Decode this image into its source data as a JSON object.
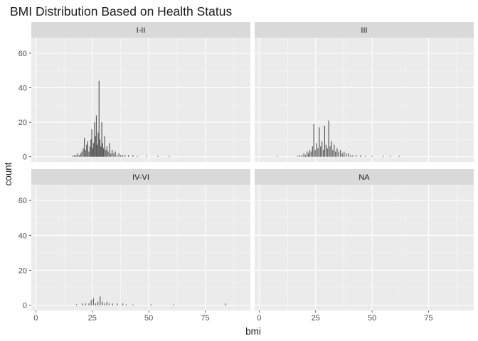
{
  "chart_data": {
    "type": "bar",
    "title": "BMI Distribution Based on Health Status",
    "xlabel": "bmi",
    "ylabel": "count",
    "xlim": [
      -2,
      95
    ],
    "ylim": [
      -3,
      69
    ],
    "x_ticks": [
      0,
      25,
      50,
      75
    ],
    "y_ticks": [
      0,
      20,
      40,
      60
    ],
    "grid": true,
    "facets": [
      {
        "label": "I-II",
        "bars": [
          {
            "x": 16.2,
            "y": 0.5
          },
          {
            "x": 17.0,
            "y": 1
          },
          {
            "x": 17.8,
            "y": 1
          },
          {
            "x": 18.5,
            "y": 2
          },
          {
            "x": 19.2,
            "y": 1
          },
          {
            "x": 19.9,
            "y": 2
          },
          {
            "x": 20.4,
            "y": 3
          },
          {
            "x": 21.0,
            "y": 5
          },
          {
            "x": 21.5,
            "y": 11
          },
          {
            "x": 22.0,
            "y": 4
          },
          {
            "x": 22.5,
            "y": 7
          },
          {
            "x": 23.0,
            "y": 9
          },
          {
            "x": 23.5,
            "y": 3
          },
          {
            "x": 24.0,
            "y": 6
          },
          {
            "x": 24.4,
            "y": 10
          },
          {
            "x": 24.8,
            "y": 16
          },
          {
            "x": 25.2,
            "y": 5
          },
          {
            "x": 25.6,
            "y": 8
          },
          {
            "x": 26.0,
            "y": 20
          },
          {
            "x": 26.4,
            "y": 12
          },
          {
            "x": 26.8,
            "y": 24
          },
          {
            "x": 27.2,
            "y": 7
          },
          {
            "x": 27.6,
            "y": 14
          },
          {
            "x": 28.0,
            "y": 44
          },
          {
            "x": 28.4,
            "y": 10
          },
          {
            "x": 28.8,
            "y": 6
          },
          {
            "x": 29.2,
            "y": 20
          },
          {
            "x": 29.6,
            "y": 8
          },
          {
            "x": 30.0,
            "y": 5
          },
          {
            "x": 30.5,
            "y": 12
          },
          {
            "x": 31.0,
            "y": 4
          },
          {
            "x": 31.5,
            "y": 6
          },
          {
            "x": 32.0,
            "y": 3
          },
          {
            "x": 32.6,
            "y": 8
          },
          {
            "x": 33.2,
            "y": 2
          },
          {
            "x": 33.8,
            "y": 4
          },
          {
            "x": 34.5,
            "y": 2
          },
          {
            "x": 35.2,
            "y": 3
          },
          {
            "x": 36.0,
            "y": 1
          },
          {
            "x": 36.8,
            "y": 2
          },
          {
            "x": 37.6,
            "y": 1
          },
          {
            "x": 38.5,
            "y": 1
          },
          {
            "x": 39.5,
            "y": 1
          },
          {
            "x": 41.0,
            "y": 1
          },
          {
            "x": 43.0,
            "y": 1
          },
          {
            "x": 45.0,
            "y": 0.5
          },
          {
            "x": 49.0,
            "y": 0.5
          },
          {
            "x": 54.0,
            "y": 0.5
          },
          {
            "x": 59.0,
            "y": 0.5
          }
        ]
      },
      {
        "label": "III",
        "bars": [
          {
            "x": 8.0,
            "y": 0.5
          },
          {
            "x": 17.0,
            "y": 0.5
          },
          {
            "x": 18.0,
            "y": 1
          },
          {
            "x": 19.0,
            "y": 1
          },
          {
            "x": 19.8,
            "y": 2
          },
          {
            "x": 20.5,
            "y": 1
          },
          {
            "x": 21.2,
            "y": 3
          },
          {
            "x": 21.8,
            "y": 2
          },
          {
            "x": 22.4,
            "y": 4
          },
          {
            "x": 23.0,
            "y": 3
          },
          {
            "x": 23.6,
            "y": 6
          },
          {
            "x": 24.2,
            "y": 19
          },
          {
            "x": 24.8,
            "y": 4
          },
          {
            "x": 25.4,
            "y": 8
          },
          {
            "x": 26.0,
            "y": 5
          },
          {
            "x": 26.6,
            "y": 17
          },
          {
            "x": 27.2,
            "y": 6
          },
          {
            "x": 27.8,
            "y": 9
          },
          {
            "x": 28.4,
            "y": 4
          },
          {
            "x": 29.0,
            "y": 18
          },
          {
            "x": 29.6,
            "y": 7
          },
          {
            "x": 30.2,
            "y": 5
          },
          {
            "x": 30.8,
            "y": 21
          },
          {
            "x": 31.4,
            "y": 6
          },
          {
            "x": 32.0,
            "y": 9
          },
          {
            "x": 32.6,
            "y": 4
          },
          {
            "x": 33.2,
            "y": 7
          },
          {
            "x": 33.8,
            "y": 3
          },
          {
            "x": 34.5,
            "y": 5
          },
          {
            "x": 35.2,
            "y": 3
          },
          {
            "x": 36.0,
            "y": 4
          },
          {
            "x": 36.8,
            "y": 2
          },
          {
            "x": 37.6,
            "y": 3
          },
          {
            "x": 38.5,
            "y": 2
          },
          {
            "x": 39.5,
            "y": 2
          },
          {
            "x": 40.5,
            "y": 1
          },
          {
            "x": 41.5,
            "y": 1
          },
          {
            "x": 43.0,
            "y": 1
          },
          {
            "x": 45.0,
            "y": 1
          },
          {
            "x": 47.0,
            "y": 0.5
          },
          {
            "x": 50.0,
            "y": 0.5
          },
          {
            "x": 55.0,
            "y": 0.5
          },
          {
            "x": 58.0,
            "y": 0.5
          },
          {
            "x": 62.0,
            "y": 0.5
          }
        ]
      },
      {
        "label": "IV-VI",
        "bars": [
          {
            "x": 18.0,
            "y": 0.5
          },
          {
            "x": 20.5,
            "y": 1
          },
          {
            "x": 22.0,
            "y": 1
          },
          {
            "x": 23.5,
            "y": 1
          },
          {
            "x": 24.5,
            "y": 3
          },
          {
            "x": 25.5,
            "y": 4
          },
          {
            "x": 26.5,
            "y": 1
          },
          {
            "x": 27.5,
            "y": 2
          },
          {
            "x": 28.5,
            "y": 5
          },
          {
            "x": 29.5,
            "y": 2
          },
          {
            "x": 30.5,
            "y": 1
          },
          {
            "x": 31.5,
            "y": 2
          },
          {
            "x": 32.5,
            "y": 1
          },
          {
            "x": 34.0,
            "y": 1
          },
          {
            "x": 36.0,
            "y": 1
          },
          {
            "x": 38.5,
            "y": 1
          },
          {
            "x": 40.0,
            "y": 0.5
          },
          {
            "x": 43.0,
            "y": 0.5
          },
          {
            "x": 51.0,
            "y": 0.5
          },
          {
            "x": 61.0,
            "y": 0.5
          },
          {
            "x": 84.0,
            "y": 1
          }
        ]
      },
      {
        "label": "NA",
        "bars": []
      }
    ]
  },
  "colors": {
    "panel_bg": "#ebebeb",
    "strip_bg": "#d9d9d9",
    "grid_major": "#ffffff",
    "bar_fill": "#595959",
    "text": "#1a1a1a",
    "tick_text": "#4d4d4d"
  }
}
